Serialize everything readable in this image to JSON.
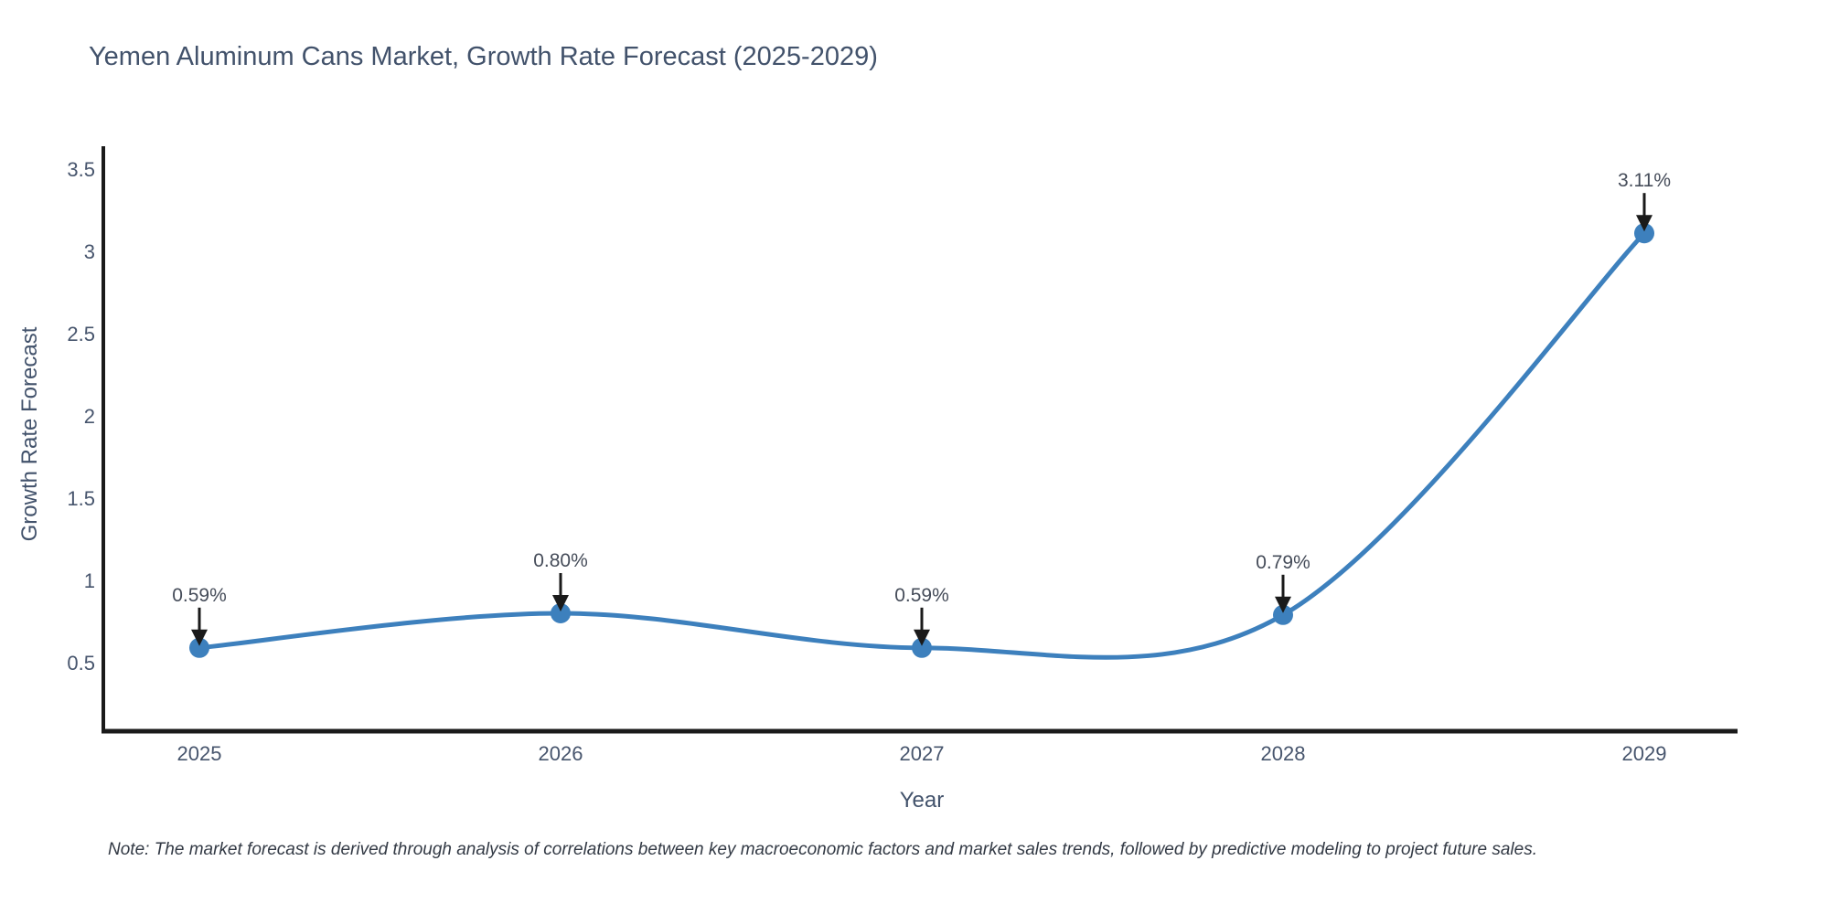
{
  "page": {
    "background": "#ffffff"
  },
  "chart_data": {
    "type": "line",
    "title": "Yemen Aluminum Cans Market, Growth Rate Forecast (2025-2029)",
    "xlabel": "Year",
    "ylabel": "Growth Rate Forecast",
    "x": [
      2025,
      2026,
      2027,
      2028,
      2029
    ],
    "series": [
      {
        "name": "Growth Rate Forecast",
        "values": [
          0.59,
          0.8,
          0.59,
          0.79,
          3.11
        ]
      }
    ],
    "point_labels": [
      "0.59%",
      "0.80%",
      "0.59%",
      "0.79%",
      "3.11%"
    ],
    "y_ticks": [
      0.5,
      1,
      1.5,
      2,
      2.5,
      3,
      3.5
    ],
    "ylim": [
      0.08,
      3.64
    ],
    "line_shape": "spline",
    "grid": false,
    "legend": "none",
    "colors": {
      "line": "#3d80bd",
      "marker": "#3d80bd",
      "axis": "#1a1a1a",
      "tick_text": "#47556d",
      "annotation_text": "#454c59",
      "annotation_arrow": "#1a1a1a"
    }
  },
  "note": {
    "text": "Note: The market forecast is derived through analysis of correlations between key macroeconomic factors and market sales trends, followed by predictive modeling to project future sales."
  }
}
